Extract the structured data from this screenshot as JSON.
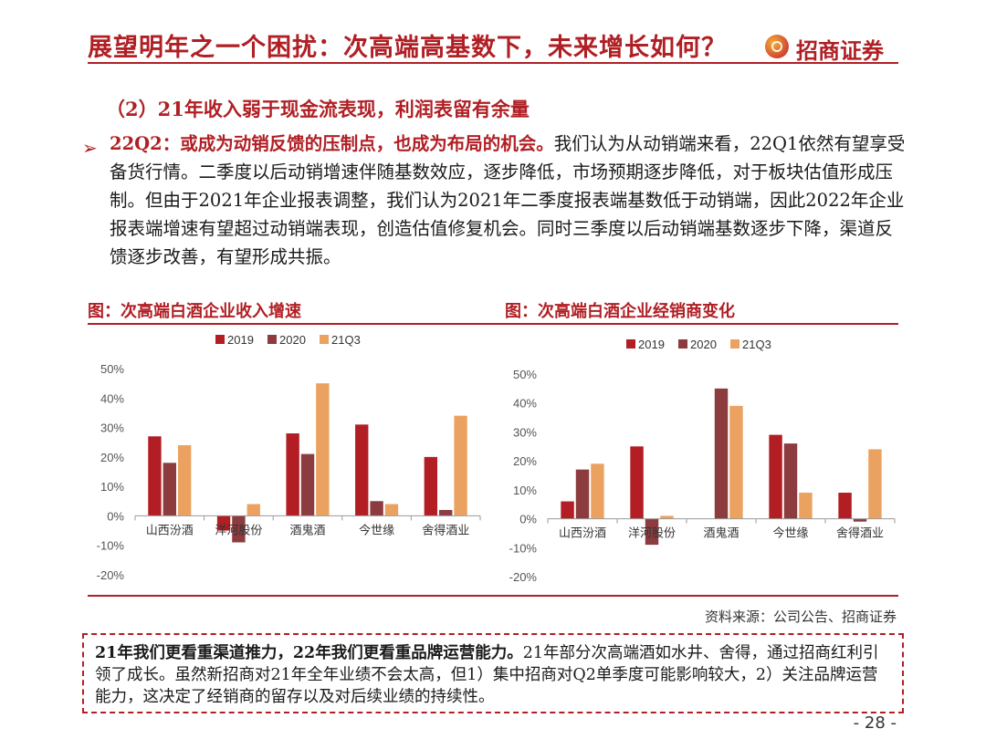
{
  "header": {
    "title": "展望明年之一个困扰：次高端高基数下，未来增长如何？",
    "logo_text": "招商证券"
  },
  "section": {
    "subheading": "（2）21年收入弱于现金流表现，利润表留有余量",
    "bullet_symbol": "➢",
    "paragraph_lead": "22Q2：或成为动销反馈的压制点，也成为布局的机会。",
    "paragraph_body": "我们认为从动销端来看，22Q1依然有望享受备货行情。二季度以后动销增速伴随基数效应，逐步降低，市场预期逐步降低，对于板块估值形成压制。但由于2021年企业报表调整，我们认为2021年二季度报表端基数低于动销端，因此2022年企业报表端增速有望超过动销端表现，创造估值修复机会。同时三季度以后动销端基数逐步下降，渠道反馈逐步改善，有望形成共振。"
  },
  "figures": {
    "left_title": "图：次高端白酒企业收入增速",
    "right_title": "图：次高端白酒企业经销商变化"
  },
  "source_note": "资料来源：公司公告、招商证券",
  "summary": {
    "lead": "21年我们更看重渠道推力，22年我们更看重品牌运营能力。",
    "body": "21年部分次高端酒如水井、舍得，通过招商红利引领了成长。虽然新招商对21年全年业绩不会太高，但1）集中招商对Q2单季度可能影响较大，2）关注品牌运营能力，这决定了经销商的留存以及对后续业绩的持续性。"
  },
  "page_number": "- 28 -",
  "colors": {
    "accent": "#b01f24",
    "series_2019": "#b21e23",
    "series_2020": "#8c3b3f",
    "series_21Q3": "#eba260"
  },
  "chart_data": [
    {
      "type": "bar",
      "title": "图：次高端白酒企业收入增速",
      "categories": [
        "山西汾酒",
        "洋河股份",
        "酒鬼酒",
        "今世缘",
        "舍得酒业"
      ],
      "series": [
        {
          "name": "2019",
          "values": [
            27,
            -5,
            28,
            31,
            20
          ]
        },
        {
          "name": "2020",
          "values": [
            18,
            -9,
            21,
            5,
            2
          ]
        },
        {
          "name": "21Q3",
          "values": [
            24,
            4,
            45,
            4,
            34
          ]
        }
      ],
      "yticks": [
        "50%",
        "40%",
        "30%",
        "20%",
        "10%",
        "0%",
        "-10%",
        "-20%"
      ],
      "ylim": [
        -20,
        50
      ],
      "legend": "top-center"
    },
    {
      "type": "bar",
      "title": "图：次高端白酒企业经销商变化",
      "categories": [
        "山西汾酒",
        "洋河股份",
        "酒鬼酒",
        "今世缘",
        "舍得酒业"
      ],
      "series": [
        {
          "name": "2019",
          "values": [
            6,
            25,
            0,
            29,
            9
          ]
        },
        {
          "name": "2020",
          "values": [
            17,
            -9,
            45,
            26,
            -1
          ]
        },
        {
          "name": "21Q3",
          "values": [
            19,
            1,
            39,
            9,
            24
          ]
        }
      ],
      "yticks": [
        "50%",
        "40%",
        "30%",
        "20%",
        "10%",
        "0%",
        "-10%",
        "-20%"
      ],
      "ylim": [
        -20,
        50
      ],
      "legend": "top-center"
    }
  ]
}
